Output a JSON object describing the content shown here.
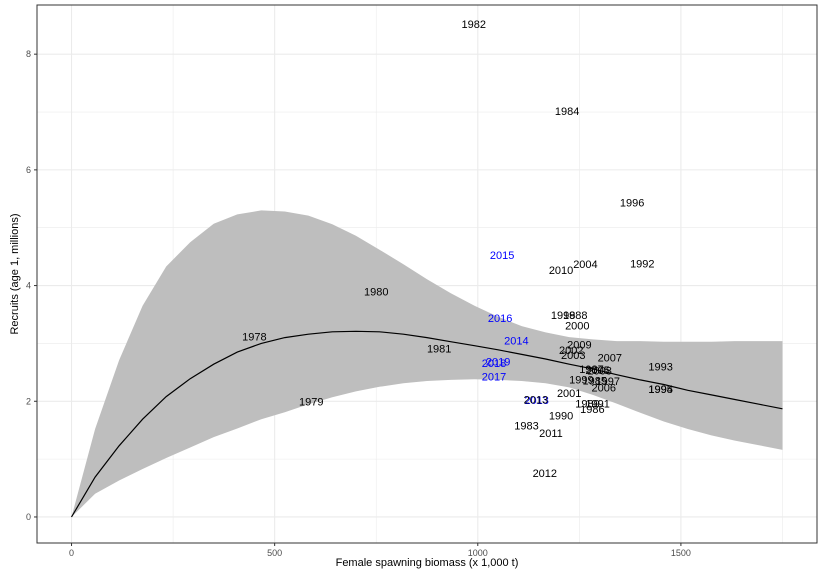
{
  "chart_data": {
    "type": "scatter",
    "xlabel": "Female spawning biomass (x 1,000 t)",
    "ylabel": "Recruits (age 1, millions)",
    "xlim": [
      -85,
      1835
    ],
    "ylim": [
      -0.45,
      8.85
    ],
    "xticks": [
      0,
      500,
      1000,
      1500
    ],
    "yticks": [
      0,
      2,
      4,
      6,
      8
    ],
    "xticks_minor": [
      250,
      750,
      1250,
      1750
    ],
    "yticks_minor": [
      1,
      3,
      5,
      7
    ],
    "grid": true,
    "colors": {
      "historical": "#000000",
      "recent": "#0000ff",
      "ribbon": "#bebebe",
      "curve": "#000000",
      "grid": "#ebebeb"
    },
    "curve": {
      "x": [
        0,
        58,
        117,
        175,
        233,
        292,
        350,
        408,
        467,
        525,
        583,
        642,
        700,
        758,
        817,
        875,
        933,
        992,
        1050,
        1108,
        1167,
        1225,
        1283,
        1342,
        1400,
        1458,
        1517,
        1575,
        1633,
        1692,
        1750
      ],
      "y": [
        0,
        0.69,
        1.23,
        1.69,
        2.08,
        2.39,
        2.64,
        2.85,
        3.0,
        3.1,
        3.16,
        3.2,
        3.21,
        3.2,
        3.16,
        3.1,
        3.03,
        2.96,
        2.89,
        2.81,
        2.73,
        2.64,
        2.56,
        2.46,
        2.37,
        2.29,
        2.19,
        2.11,
        2.03,
        1.95,
        1.87
      ]
    },
    "ribbon": {
      "x": [
        0,
        58,
        117,
        175,
        233,
        292,
        350,
        408,
        467,
        525,
        583,
        642,
        700,
        758,
        817,
        875,
        933,
        992,
        1050,
        1108,
        1167,
        1225,
        1283,
        1342,
        1400,
        1458,
        1517,
        1575,
        1633,
        1692,
        1750
      ],
      "upper": [
        0,
        1.52,
        2.71,
        3.65,
        4.33,
        4.75,
        5.07,
        5.23,
        5.3,
        5.28,
        5.21,
        5.06,
        4.86,
        4.62,
        4.37,
        4.11,
        3.87,
        3.65,
        3.46,
        3.3,
        3.19,
        3.11,
        3.07,
        3.04,
        3.04,
        3.03,
        3.03,
        3.03,
        3.04,
        3.04,
        3.04
      ],
      "lower": [
        0,
        0.4,
        0.63,
        0.83,
        1.02,
        1.2,
        1.38,
        1.53,
        1.69,
        1.81,
        1.95,
        2.07,
        2.17,
        2.25,
        2.31,
        2.35,
        2.37,
        2.38,
        2.37,
        2.35,
        2.31,
        2.24,
        2.11,
        1.96,
        1.8,
        1.65,
        1.52,
        1.41,
        1.32,
        1.24,
        1.16
      ]
    },
    "points": [
      {
        "label": "1978",
        "x": 450,
        "y": 3.12,
        "group": "historical"
      },
      {
        "label": "1979",
        "x": 590,
        "y": 2.0,
        "group": "historical"
      },
      {
        "label": "1980",
        "x": 750,
        "y": 3.9,
        "group": "historical"
      },
      {
        "label": "1981",
        "x": 905,
        "y": 2.91,
        "group": "historical"
      },
      {
        "label": "1982",
        "x": 990,
        "y": 8.52,
        "group": "historical"
      },
      {
        "label": "1983",
        "x": 1120,
        "y": 1.58,
        "group": "historical"
      },
      {
        "label": "1984",
        "x": 1220,
        "y": 7.02,
        "group": "historical"
      },
      {
        "label": "1985",
        "x": 1288,
        "y": 2.36,
        "group": "historical"
      },
      {
        "label": "1986",
        "x": 1282,
        "y": 1.87,
        "group": "historical"
      },
      {
        "label": "1987",
        "x": 1280,
        "y": 2.56,
        "group": "historical"
      },
      {
        "label": "1988",
        "x": 1240,
        "y": 3.49,
        "group": "historical"
      },
      {
        "label": "1989",
        "x": 1270,
        "y": 1.96,
        "group": "historical"
      },
      {
        "label": "1990",
        "x": 1205,
        "y": 1.75,
        "group": "historical"
      },
      {
        "label": "1991",
        "x": 1295,
        "y": 1.96,
        "group": "historical"
      },
      {
        "label": "1992",
        "x": 1405,
        "y": 4.38,
        "group": "historical"
      },
      {
        "label": "1993",
        "x": 1450,
        "y": 2.6,
        "group": "historical"
      },
      {
        "label": "1994",
        "x": 1450,
        "y": 2.21,
        "group": "historical"
      },
      {
        "label": "1995",
        "x": 1450,
        "y": 2.21,
        "group": "historical"
      },
      {
        "label": "1996",
        "x": 1380,
        "y": 5.44,
        "group": "historical"
      },
      {
        "label": "1997",
        "x": 1320,
        "y": 2.35,
        "group": "historical"
      },
      {
        "label": "1998",
        "x": 1210,
        "y": 3.49,
        "group": "historical"
      },
      {
        "label": "1999",
        "x": 1255,
        "y": 2.38,
        "group": "historical"
      },
      {
        "label": "2000",
        "x": 1245,
        "y": 3.31,
        "group": "historical"
      },
      {
        "label": "2001",
        "x": 1225,
        "y": 2.14,
        "group": "historical"
      },
      {
        "label": "2002",
        "x": 1230,
        "y": 2.89,
        "group": "historical"
      },
      {
        "label": "2003",
        "x": 1235,
        "y": 2.8,
        "group": "historical"
      },
      {
        "label": "2004",
        "x": 1265,
        "y": 4.37,
        "group": "historical"
      },
      {
        "label": "2005",
        "x": 1295,
        "y": 2.54,
        "group": "historical"
      },
      {
        "label": "2006",
        "x": 1310,
        "y": 2.24,
        "group": "historical"
      },
      {
        "label": "2007",
        "x": 1325,
        "y": 2.76,
        "group": "historical"
      },
      {
        "label": "2008",
        "x": 1300,
        "y": 2.53,
        "group": "historical"
      },
      {
        "label": "2009",
        "x": 1250,
        "y": 2.98,
        "group": "historical"
      },
      {
        "label": "2010",
        "x": 1205,
        "y": 4.27,
        "group": "historical"
      },
      {
        "label": "2011",
        "x": 1180,
        "y": 1.45,
        "group": "historical"
      },
      {
        "label": "2012",
        "x": 1165,
        "y": 0.76,
        "group": "historical"
      },
      {
        "label": "2013",
        "x": 1145,
        "y": 2.02,
        "group": "recent"
      },
      {
        "label": "2014",
        "x": 1095,
        "y": 3.05,
        "group": "recent"
      },
      {
        "label": "2015",
        "x": 1060,
        "y": 4.53,
        "group": "recent"
      },
      {
        "label": "2016",
        "x": 1055,
        "y": 3.44,
        "group": "recent"
      },
      {
        "label": "2017",
        "x": 1040,
        "y": 2.43,
        "group": "recent"
      },
      {
        "label": "2018",
        "x": 1040,
        "y": 2.66,
        "group": "recent"
      },
      {
        "label": "2019",
        "x": 1050,
        "y": 2.69,
        "group": "recent"
      },
      {
        "label": "2013",
        "x": 1143,
        "y": 2.03,
        "group": "historical"
      }
    ]
  }
}
